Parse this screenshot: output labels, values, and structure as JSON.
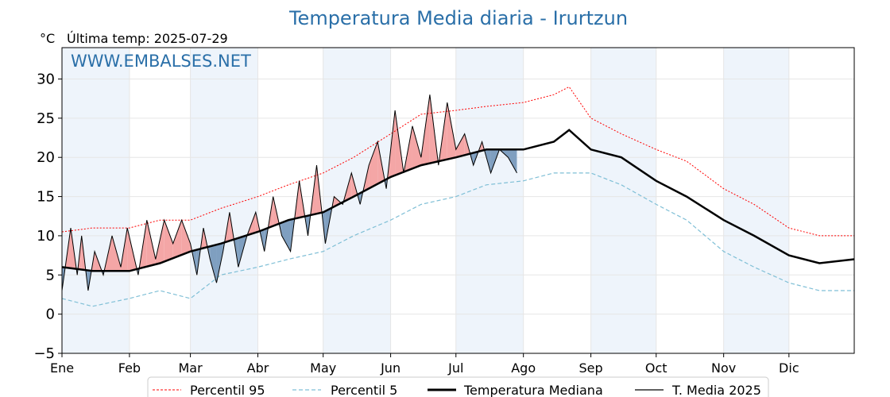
{
  "chart_data": {
    "type": "line",
    "title": "Temperatura Media diaria - Irurtzun",
    "unit_label": "°C",
    "last_temp_label": "Última temp: 2025-07-29",
    "watermark": "WWW.EMBALSES.NET",
    "ylim": [
      -5,
      34
    ],
    "yticks": [
      -5,
      0,
      5,
      10,
      15,
      20,
      25,
      30
    ],
    "ytick_labels": [
      "−5",
      "0",
      "5",
      "10",
      "15",
      "20",
      "25",
      "30"
    ],
    "months": [
      "Ene",
      "Feb",
      "Mar",
      "Abr",
      "May",
      "Jun",
      "Jul",
      "Ago",
      "Sep",
      "Oct",
      "Nov",
      "Dic"
    ],
    "legend": [
      "Percentil 95",
      "Percentil 5",
      "Temperatura Mediana",
      "T. Media 2025"
    ],
    "colors": {
      "p95": "#ff0000",
      "p5": "#7fbfd6",
      "median": "#000000",
      "current": "#000000",
      "above": "#f4a6a6",
      "above_strong": "#ee5a5a",
      "below": "#7f9fc0",
      "below_strong": "#2f5f9a",
      "band": "#eef4fb"
    },
    "series": [
      {
        "name": "Percentil 95",
        "x": [
          1,
          15,
          32,
          46,
          60,
          74,
          91,
          105,
          121,
          135,
          152,
          166,
          182,
          196,
          213,
          227,
          234,
          244,
          258,
          274,
          288,
          305,
          319,
          335,
          349,
          365
        ],
        "values": [
          10.5,
          11,
          11,
          12,
          12,
          13.5,
          15,
          16.5,
          18,
          20,
          23,
          25.5,
          26,
          26.5,
          27,
          28,
          29,
          25,
          23,
          21,
          19.5,
          16,
          14,
          11,
          10,
          10
        ]
      },
      {
        "name": "Percentil 5",
        "x": [
          1,
          15,
          32,
          46,
          60,
          74,
          91,
          105,
          121,
          135,
          152,
          166,
          182,
          196,
          213,
          227,
          244,
          258,
          274,
          288,
          305,
          319,
          335,
          349,
          365
        ],
        "values": [
          2,
          1,
          2,
          3,
          2,
          5,
          6,
          7,
          8,
          10,
          12,
          14,
          15,
          16.5,
          17,
          18,
          18,
          16.5,
          14,
          12,
          8,
          6,
          4,
          3,
          3
        ]
      },
      {
        "name": "Temperatura Mediana",
        "x": [
          1,
          15,
          32,
          46,
          60,
          74,
          91,
          105,
          121,
          135,
          152,
          166,
          182,
          196,
          213,
          227,
          234,
          244,
          258,
          274,
          288,
          305,
          319,
          335,
          349,
          365
        ],
        "values": [
          6,
          5.5,
          5.5,
          6.5,
          8,
          9,
          10.5,
          12,
          13,
          15,
          17.5,
          19,
          20,
          21,
          21,
          22,
          23.5,
          21,
          20,
          17,
          15,
          12,
          10,
          7.5,
          6.5,
          7
        ]
      },
      {
        "name": "T. Media 2025",
        "x": [
          1,
          5,
          8,
          10,
          13,
          16,
          20,
          24,
          28,
          31,
          36,
          40,
          44,
          48,
          52,
          56,
          60,
          63,
          66,
          69,
          72,
          75,
          78,
          82,
          86,
          90,
          94,
          98,
          102,
          106,
          110,
          114,
          118,
          122,
          126,
          130,
          134,
          138,
          142,
          146,
          150,
          154,
          158,
          162,
          166,
          170,
          174,
          178,
          182,
          186,
          190,
          194,
          198,
          202,
          206,
          210
        ],
        "values": [
          3,
          11,
          5,
          10,
          3,
          8,
          5,
          10,
          6,
          11,
          5,
          12,
          7,
          12,
          9,
          12,
          9,
          5,
          11,
          7,
          4,
          8,
          13,
          6,
          10,
          13,
          8,
          15,
          10,
          8,
          17,
          10,
          19,
          9,
          15,
          14,
          18,
          14,
          19,
          22,
          16,
          26,
          18,
          24,
          20,
          28,
          19,
          27,
          21,
          23,
          19,
          22,
          18,
          21,
          20,
          18
        ]
      }
    ]
  }
}
